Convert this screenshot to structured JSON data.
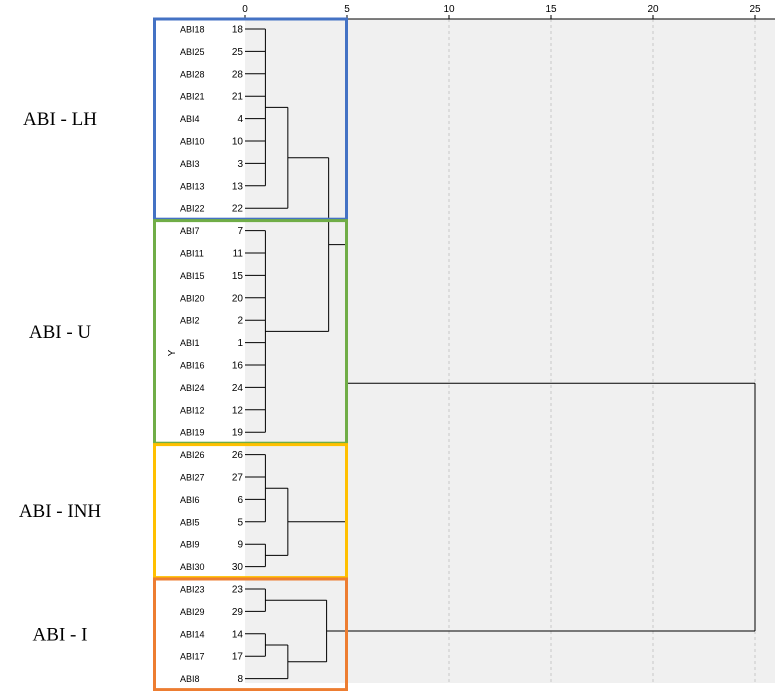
{
  "chart_data": {
    "type": "dendrogram",
    "axis": {
      "ticks": [
        0,
        5,
        10,
        15,
        20,
        25
      ],
      "range": [
        0,
        25
      ],
      "grid": true
    },
    "y_axis_label": "Y",
    "leaves": [
      {
        "label": "ABI18",
        "num": "18"
      },
      {
        "label": "ABI25",
        "num": "25"
      },
      {
        "label": "ABI28",
        "num": "28"
      },
      {
        "label": "ABI21",
        "num": "21"
      },
      {
        "label": "ABI4",
        "num": "4"
      },
      {
        "label": "ABI10",
        "num": "10"
      },
      {
        "label": "ABI3",
        "num": "3"
      },
      {
        "label": "ABI13",
        "num": "13"
      },
      {
        "label": "ABI22",
        "num": "22"
      },
      {
        "label": "ABI7",
        "num": "7"
      },
      {
        "label": "ABI11",
        "num": "11"
      },
      {
        "label": "ABI15",
        "num": "15"
      },
      {
        "label": "ABI20",
        "num": "20"
      },
      {
        "label": "ABI2",
        "num": "2"
      },
      {
        "label": "ABI1",
        "num": "1"
      },
      {
        "label": "ABI16",
        "num": "16"
      },
      {
        "label": "ABI24",
        "num": "24"
      },
      {
        "label": "ABI12",
        "num": "12"
      },
      {
        "label": "ABI19",
        "num": "19"
      },
      {
        "label": "ABI26",
        "num": "26"
      },
      {
        "label": "ABI27",
        "num": "27"
      },
      {
        "label": "ABI6",
        "num": "6"
      },
      {
        "label": "ABI5",
        "num": "5"
      },
      {
        "label": "ABI9",
        "num": "9"
      },
      {
        "label": "ABI30",
        "num": "30"
      },
      {
        "label": "ABI23",
        "num": "23"
      },
      {
        "label": "ABI29",
        "num": "29"
      },
      {
        "label": "ABI14",
        "num": "14"
      },
      {
        "label": "ABI17",
        "num": "17"
      },
      {
        "label": "ABI8",
        "num": "8"
      }
    ],
    "merges": [
      {
        "children": [
          "L0",
          "L1",
          "L2",
          "L3",
          "L4",
          "L5",
          "L6",
          "L7"
        ],
        "height": 1.0
      },
      {
        "children": [
          "M0",
          "L8"
        ],
        "height": 2.1
      },
      {
        "children": [
          "L9",
          "L10",
          "L11",
          "L12",
          "L13",
          "L14",
          "L15",
          "L16",
          "L17",
          "L18"
        ],
        "height": 1.0
      },
      {
        "children": [
          "M1",
          "M2"
        ],
        "height": 4.1
      },
      {
        "children": [
          "L19",
          "L20",
          "L21",
          "L22"
        ],
        "height": 1.0
      },
      {
        "children": [
          "L23",
          "L24"
        ],
        "height": 1.0
      },
      {
        "children": [
          "M4",
          "M5"
        ],
        "height": 2.1
      },
      {
        "children": [
          "M3",
          "M6"
        ],
        "height": 5.0
      },
      {
        "children": [
          "L25",
          "L26"
        ],
        "height": 1.0
      },
      {
        "children": [
          "L27",
          "L28"
        ],
        "height": 1.0
      },
      {
        "children": [
          "M9",
          "L29"
        ],
        "height": 2.1
      },
      {
        "children": [
          "M8",
          "M10"
        ],
        "height": 4.0
      },
      {
        "children": [
          "M7",
          "M11"
        ],
        "height": 25.0
      }
    ],
    "groups": [
      {
        "label": "ABI - LH",
        "first": 0,
        "last": 8,
        "color": "#4472C4"
      },
      {
        "label": "ABI - U",
        "first": 9,
        "last": 18,
        "color": "#70AD47"
      },
      {
        "label": "ABI - INH",
        "first": 19,
        "last": 24,
        "color": "#FFC000"
      },
      {
        "label": "ABI - I",
        "first": 25,
        "last": 29,
        "color": "#ED7D31"
      }
    ]
  }
}
